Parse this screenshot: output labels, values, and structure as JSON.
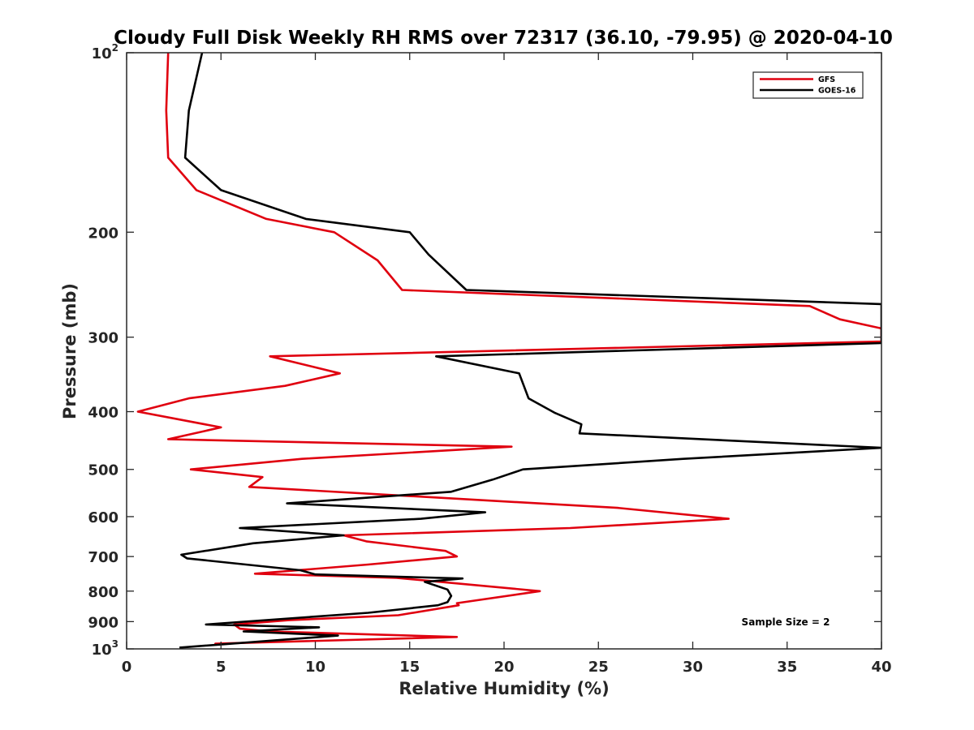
{
  "chart_data": {
    "type": "line",
    "title": "Cloudy Full Disk Weekly RH RMS over 72317 (36.10, -79.95) @ 2020-04-10",
    "xlabel": "Relative Humidity (%)",
    "ylabel": "Pressure (mb)",
    "xlim": [
      0,
      40
    ],
    "ylim": [
      100,
      1000
    ],
    "y_scale": "log",
    "y_reversed": true,
    "x_ticks": [
      "0",
      "5",
      "10",
      "15",
      "20",
      "25",
      "30",
      "35",
      "40"
    ],
    "y_ticks": [
      {
        "value": 100,
        "base": "10",
        "exp": "2"
      },
      {
        "value": 200,
        "label": "200"
      },
      {
        "value": 300,
        "label": "300"
      },
      {
        "value": 400,
        "label": "400"
      },
      {
        "value": 500,
        "label": "500"
      },
      {
        "value": 600,
        "label": "600"
      },
      {
        "value": 700,
        "label": "700"
      },
      {
        "value": 800,
        "label": "800"
      },
      {
        "value": 900,
        "label": "900"
      },
      {
        "value": 1000,
        "base": "10",
        "exp": "3"
      }
    ],
    "grid": false,
    "legend_position": "top-right",
    "annotation": "Sample Size = 2",
    "series": [
      {
        "name": "GFS",
        "color": "#e0000f",
        "points": [
          [
            2.2,
            100
          ],
          [
            2.1,
            125
          ],
          [
            2.2,
            150
          ],
          [
            3.7,
            170
          ],
          [
            7.4,
            190
          ],
          [
            11.0,
            200
          ],
          [
            13.3,
            223
          ],
          [
            14.6,
            250
          ],
          [
            36.2,
            266
          ],
          [
            37.8,
            280
          ],
          [
            40.0,
            290
          ],
          [
            40.0,
            305
          ],
          [
            7.6,
            323
          ],
          [
            11.3,
            345
          ],
          [
            8.4,
            362
          ],
          [
            3.3,
            380
          ],
          [
            0.6,
            400
          ],
          [
            5.0,
            425
          ],
          [
            2.2,
            445
          ],
          [
            20.4,
            458
          ],
          [
            9.3,
            480
          ],
          [
            3.4,
            500
          ],
          [
            7.2,
            515
          ],
          [
            6.5,
            535
          ],
          [
            26.0,
            580
          ],
          [
            31.9,
            605
          ],
          [
            23.5,
            627
          ],
          [
            11.5,
            645
          ],
          [
            12.7,
            660
          ],
          [
            16.9,
            685
          ],
          [
            17.5,
            700
          ],
          [
            12.8,
            722
          ],
          [
            6.8,
            748
          ],
          [
            14.3,
            760
          ],
          [
            21.9,
            800
          ],
          [
            17.5,
            838
          ],
          [
            17.6,
            845
          ],
          [
            14.4,
            878
          ],
          [
            8.6,
            895
          ],
          [
            5.7,
            910
          ],
          [
            6.0,
            925
          ],
          [
            7.6,
            935
          ],
          [
            17.5,
            955
          ],
          [
            4.7,
            980
          ],
          [
            4.8,
            985
          ]
        ]
      },
      {
        "name": "GOES-16",
        "color": "#000000",
        "points": [
          [
            4.0,
            100
          ],
          [
            3.3,
            125
          ],
          [
            3.1,
            150
          ],
          [
            5.0,
            170
          ],
          [
            9.5,
            190
          ],
          [
            15.0,
            200
          ],
          [
            16.0,
            218
          ],
          [
            18.0,
            250
          ],
          [
            40.0,
            264
          ],
          [
            40.0,
            307
          ],
          [
            16.4,
            323
          ],
          [
            20.8,
            345
          ],
          [
            21.3,
            380
          ],
          [
            22.7,
            402
          ],
          [
            24.1,
            420
          ],
          [
            24.0,
            435
          ],
          [
            40.0,
            460
          ],
          [
            29.5,
            480
          ],
          [
            21.0,
            500
          ],
          [
            19.4,
            520
          ],
          [
            17.2,
            545
          ],
          [
            8.5,
            570
          ],
          [
            19.0,
            590
          ],
          [
            15.6,
            605
          ],
          [
            6.0,
            627
          ],
          [
            11.5,
            645
          ],
          [
            6.7,
            665
          ],
          [
            2.9,
            695
          ],
          [
            3.2,
            705
          ],
          [
            9.2,
            738
          ],
          [
            10.0,
            750
          ],
          [
            17.8,
            762
          ],
          [
            15.8,
            772
          ],
          [
            17.0,
            795
          ],
          [
            17.2,
            815
          ],
          [
            17.0,
            835
          ],
          [
            16.5,
            845
          ],
          [
            12.8,
            870
          ],
          [
            4.2,
            910
          ],
          [
            10.2,
            920
          ],
          [
            6.2,
            935
          ],
          [
            11.2,
            950
          ],
          [
            2.8,
            995
          ]
        ]
      }
    ]
  }
}
